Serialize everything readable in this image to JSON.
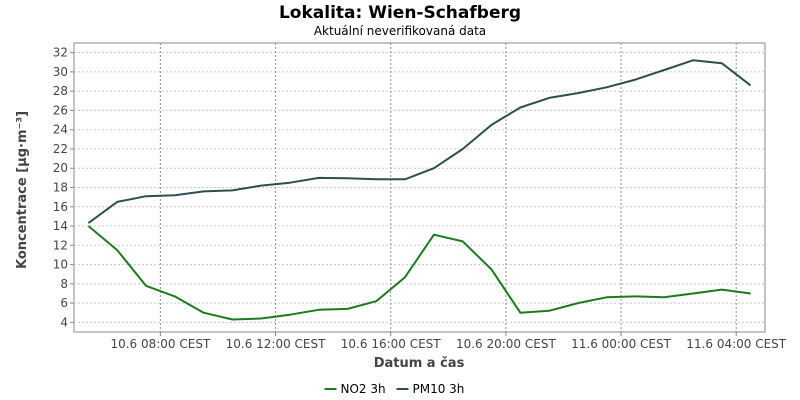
{
  "chart_data": {
    "type": "line",
    "title": "Lokalita: Wien-Schafberg",
    "subtitle": "Aktuální neverifikovaná data",
    "xlabel": "Datum a čas",
    "ylabel": "Koncentrace [µg·m⁻³]",
    "x_hours": [
      5.5,
      6.5,
      7.5,
      8.5,
      9.5,
      10.5,
      11.5,
      12.5,
      13.5,
      14.5,
      15.5,
      16.5,
      17.5,
      18.5,
      19.5,
      20.5,
      21.5,
      22.5,
      23.5,
      24.5,
      25.5,
      26.5,
      27.5,
      28.5
    ],
    "xlim": [
      5,
      29
    ],
    "x_ticks": [
      {
        "value": 8,
        "label": "10.6 08:00 CEST"
      },
      {
        "value": 12,
        "label": "10.6 12:00 CEST"
      },
      {
        "value": 16,
        "label": "10.6 16:00 CEST"
      },
      {
        "value": 20,
        "label": "10.6 20:00 CEST"
      },
      {
        "value": 24,
        "label": "11.6 00:00 CEST"
      },
      {
        "value": 28,
        "label": "11.6 04:00 CEST"
      }
    ],
    "ylim": [
      3,
      33
    ],
    "y_ticks": [
      4,
      6,
      8,
      10,
      12,
      14,
      16,
      18,
      20,
      22,
      24,
      26,
      28,
      30,
      32
    ],
    "grid": true,
    "legend_position": "bottom",
    "series": [
      {
        "name": "NO2 3h",
        "color": "#1e7a1e",
        "values": [
          14.0,
          11.5,
          7.8,
          6.7,
          5.0,
          4.3,
          4.4,
          4.8,
          5.3,
          5.4,
          6.2,
          8.7,
          13.1,
          12.4,
          9.5,
          5.0,
          5.2,
          6.0,
          6.6,
          6.7,
          6.6,
          7.0,
          7.4,
          7.0
        ]
      },
      {
        "name": "PM10 3h",
        "color": "#2f4f4f",
        "values": [
          14.3,
          16.5,
          17.1,
          17.2,
          17.6,
          17.7,
          18.2,
          18.5,
          19.0,
          18.95,
          18.85,
          18.85,
          20.0,
          22.0,
          24.5,
          26.3,
          27.3,
          27.8,
          28.4,
          29.2,
          30.2,
          31.2,
          30.9,
          28.6
        ]
      }
    ]
  }
}
